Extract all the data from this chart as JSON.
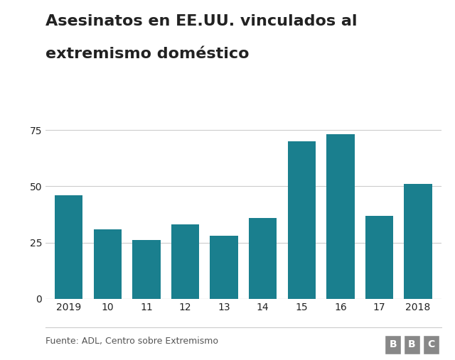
{
  "title_line1": "Asesinatos en EE.UU. vinculados al",
  "title_line2": "extremismo doméstico",
  "x_labels": [
    "2019",
    "10",
    "11",
    "12",
    "13",
    "14",
    "15",
    "16",
    "17",
    "2018"
  ],
  "values": [
    46,
    31,
    26,
    33,
    28,
    36,
    70,
    73,
    37,
    51
  ],
  "bar_color": "#1a7f8e",
  "background_color": "#ffffff",
  "yticks": [
    0,
    25,
    50,
    75
  ],
  "ylim": [
    0,
    80
  ],
  "footnote": "Fuente: ADL, Centro sobre Extremismo",
  "bbc_label": "BBC",
  "title_fontsize": 16,
  "footnote_fontsize": 9,
  "tick_fontsize": 10,
  "grid_color": "#cccccc",
  "axis_color": "#999999",
  "text_color": "#222222",
  "footer_line_color": "#cccccc",
  "bbc_box_color": "#888888"
}
